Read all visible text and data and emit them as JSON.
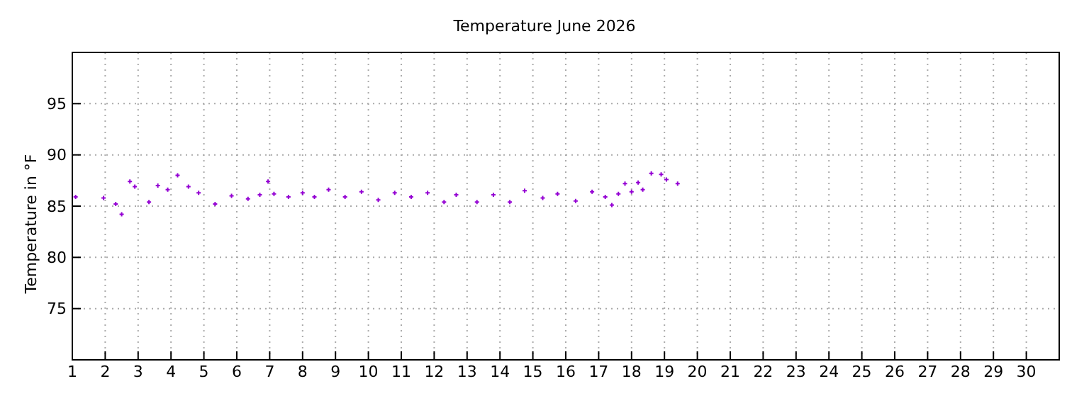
{
  "chart_data": {
    "type": "scatter",
    "title": "Temperature June 2026",
    "ylabel": "Temperature in °F",
    "xlim": [
      1,
      31
    ],
    "xticks": [
      1,
      2,
      3,
      4,
      5,
      6,
      7,
      8,
      9,
      10,
      11,
      12,
      13,
      14,
      15,
      16,
      17,
      18,
      19,
      20,
      21,
      22,
      23,
      24,
      25,
      26,
      27,
      28,
      29,
      30
    ],
    "ylim": [
      70,
      100
    ],
    "yticks": [
      75,
      80,
      85,
      90,
      95
    ],
    "grid": true,
    "marker": "cross",
    "series": [
      {
        "color": "#9400d3",
        "x": [
          1.1,
          1.95,
          2.32,
          2.5,
          2.75,
          2.9,
          3.33,
          3.6,
          3.9,
          4.2,
          4.53,
          4.84,
          5.34,
          5.84,
          6.34,
          6.7,
          6.95,
          7.13,
          7.57,
          8,
          8.36,
          8.79,
          9.29,
          9.79,
          10.3,
          10.8,
          11.3,
          11.8,
          12.3,
          12.67,
          13.3,
          13.8,
          14.3,
          14.75,
          15.3,
          15.75,
          16.3,
          16.8,
          17.2,
          17.4,
          17.6,
          17.8,
          18,
          18.2,
          18.34,
          18.6,
          18.9,
          19.06,
          19.4
        ],
        "values": [
          85.9,
          85.8,
          85.2,
          84.2,
          87.4,
          86.9,
          85.4,
          87,
          86.6,
          88,
          86.9,
          86.3,
          85.2,
          86,
          85.7,
          86.1,
          87.4,
          86.2,
          85.9,
          86.3,
          85.9,
          86.6,
          85.9,
          86.4,
          85.6,
          86.3,
          85.9,
          86.3,
          85.4,
          86.1,
          85.4,
          86.1,
          85.4,
          86.5,
          85.8,
          86.2,
          85.5,
          86.4,
          85.9,
          85.1,
          86.2,
          87.2,
          86.4,
          87.3,
          86.6,
          88.2,
          88.1,
          87.6,
          87.2
        ]
      }
    ]
  }
}
